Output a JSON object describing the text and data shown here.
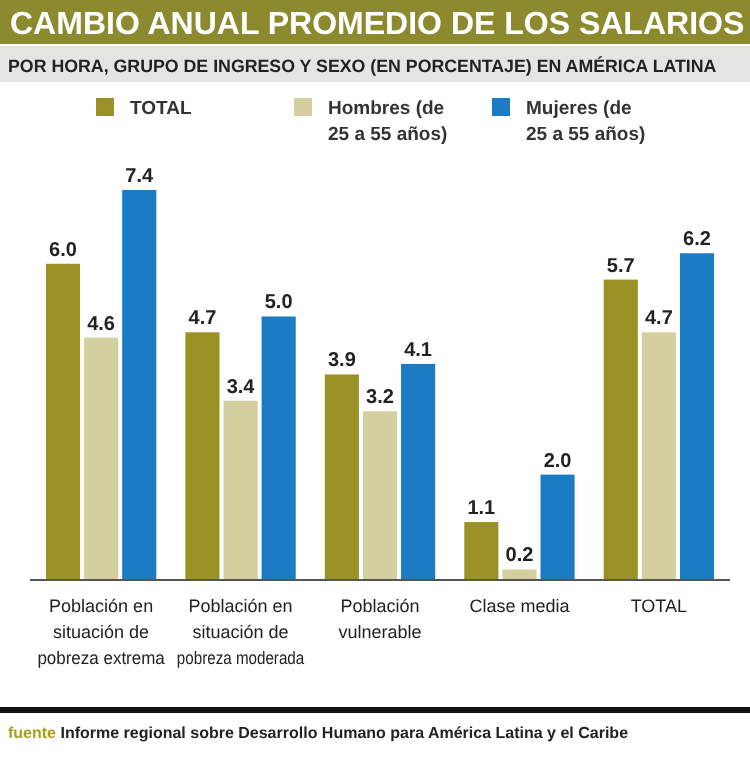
{
  "chart_data": {
    "type": "bar",
    "title": "CAMBIO ANUAL PROMEDIO DE LOS SALARIOS",
    "subtitle": "POR HORA, GRUPO DE INGRESO Y SEXO (EN PORCENTAJE) EN AMÉRICA LATINA",
    "categories": [
      "Población en situación de pobreza extrema",
      "Población en situación de pobreza moderada",
      "Población vulnerable",
      "Clase media",
      "TOTAL"
    ],
    "series": [
      {
        "name": "TOTAL",
        "color": "#9b9226",
        "values": [
          6.0,
          4.7,
          3.9,
          1.1,
          5.7
        ],
        "value_labels": [
          "6.0",
          "4.7",
          "3.9",
          "1.1",
          "5.7"
        ]
      },
      {
        "name": "Hombres (de 25 a 55 años)",
        "color": "#d3cf9f",
        "values": [
          4.6,
          3.4,
          3.2,
          0.2,
          4.7
        ],
        "value_labels": [
          "4.6",
          "3.4",
          "3.2",
          "0.2",
          "4.7"
        ]
      },
      {
        "name": "Mujeres (de 25 a 55 años)",
        "color": "#1b7cc4",
        "values": [
          7.4,
          5.0,
          4.1,
          2.0,
          6.2
        ],
        "value_labels": [
          "7.4",
          "5.0",
          "4.1",
          "2.0",
          "6.2"
        ]
      }
    ],
    "legend": "top",
    "grid": false,
    "annotations": [
      "fuente Informe regional sobre Desarrollo Humano para América Latina y el Caribe"
    ]
  }
}
